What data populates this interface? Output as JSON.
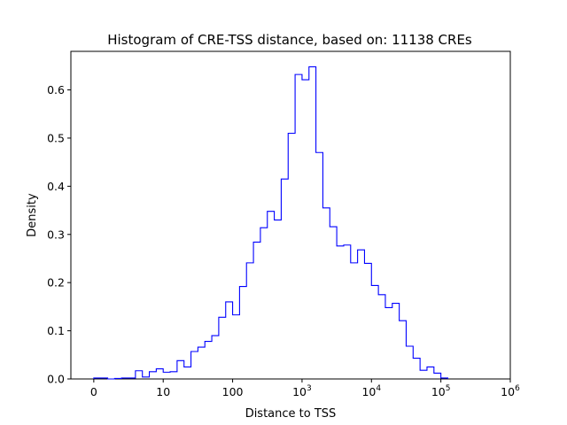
{
  "chart_data": {
    "type": "histogram-step",
    "title": "Histogram of CRE-TSS distance, based on: 11138 CREs",
    "xlabel": "Distance to TSS",
    "ylabel": "Density",
    "x_ticks": [
      {
        "value": 0,
        "base": "0",
        "sup": ""
      },
      {
        "value": 1,
        "base": "10",
        "sup": ""
      },
      {
        "value": 2,
        "base": "100",
        "sup": ""
      },
      {
        "value": 3,
        "base": "10",
        "sup": "3"
      },
      {
        "value": 4,
        "base": "10",
        "sup": "4"
      },
      {
        "value": 5,
        "base": "10",
        "sup": "5"
      },
      {
        "value": 6,
        "base": "10",
        "sup": "6"
      }
    ],
    "y_ticks": [
      "0.0",
      "0.1",
      "0.2",
      "0.3",
      "0.4",
      "0.5",
      "0.6"
    ],
    "y_tick_values": [
      0.0,
      0.1,
      0.2,
      0.3,
      0.4,
      0.5,
      0.6
    ],
    "xlim": [
      -0.33,
      6.0
    ],
    "ylim": [
      0,
      0.68
    ],
    "color": "#0000ff",
    "bin_width": 0.1,
    "bin_start": 0.0,
    "densities": [
      0.002,
      0.002,
      0.0,
      0.001,
      0.002,
      0.002,
      0.017,
      0.004,
      0.015,
      0.021,
      0.014,
      0.015,
      0.038,
      0.025,
      0.057,
      0.066,
      0.078,
      0.09,
      0.128,
      0.16,
      0.133,
      0.192,
      0.241,
      0.284,
      0.314,
      0.348,
      0.33,
      0.415,
      0.51,
      0.632,
      0.621,
      0.648,
      0.47,
      0.355,
      0.316,
      0.276,
      0.278,
      0.241,
      0.268,
      0.24,
      0.194,
      0.175,
      0.148,
      0.157,
      0.121,
      0.068,
      0.043,
      0.018,
      0.025,
      0.012,
      0.002
    ]
  }
}
